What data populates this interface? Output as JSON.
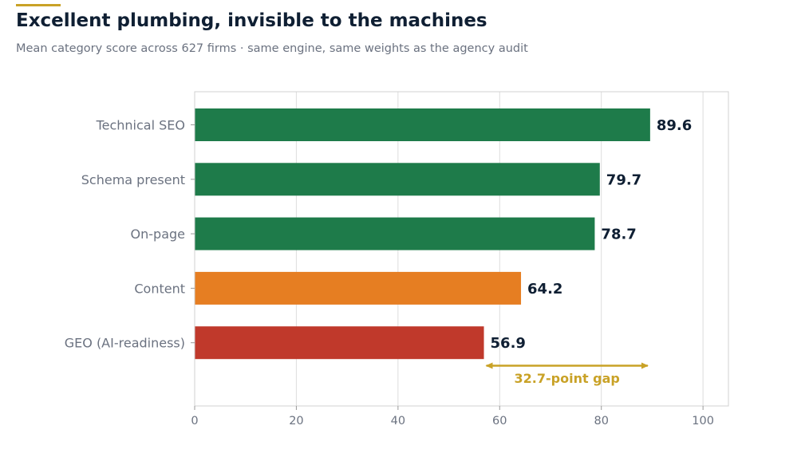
{
  "header": {
    "title": "Excellent plumbing, invisible to the machines",
    "subtitle": "Mean category score across 627 firms · same engine, same weights as the agency audit"
  },
  "colors": {
    "accent": "#c9a227",
    "green": "#1e7b4a",
    "orange": "#e67e22",
    "red": "#c0392b",
    "text_dark": "#0f1f33",
    "text_muted": "#6b7280",
    "grid": "#dddddd"
  },
  "chart_data": {
    "type": "bar",
    "orientation": "horizontal",
    "categories": [
      "Technical SEO",
      "Schema present",
      "On-page",
      "Content",
      "GEO (AI-readiness)"
    ],
    "values": [
      89.6,
      79.7,
      78.7,
      64.2,
      56.9
    ],
    "value_labels": [
      "89.6",
      "79.7",
      "78.7",
      "64.2",
      "56.9"
    ],
    "bar_colors": [
      "#1e7b4a",
      "#1e7b4a",
      "#1e7b4a",
      "#e67e22",
      "#c0392b"
    ],
    "xlim": [
      0,
      105
    ],
    "xticks": [
      0,
      20,
      40,
      60,
      80,
      100
    ],
    "grid": true,
    "annotation": {
      "text": "32.7-point gap",
      "from": 56.9,
      "to": 89.6,
      "color": "#c9a227"
    }
  }
}
